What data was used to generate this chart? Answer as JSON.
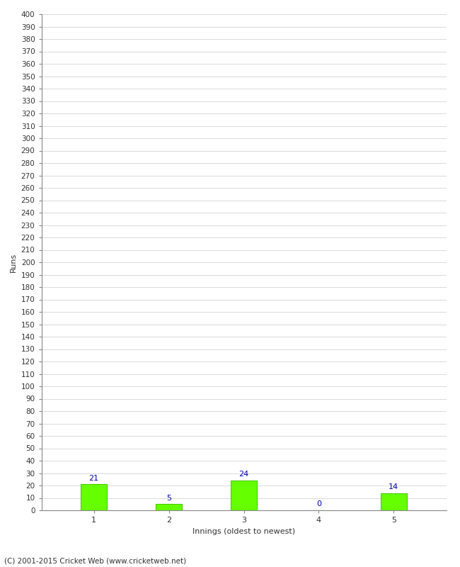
{
  "categories": [
    1,
    2,
    3,
    4,
    5
  ],
  "values": [
    21,
    5,
    24,
    0,
    14
  ],
  "bar_color": "#66ff00",
  "bar_edgecolor": "#44cc00",
  "label_color": "#0000aa",
  "xlabel": "Innings (oldest to newest)",
  "ylabel": "Runs",
  "ylim": [
    0,
    400
  ],
  "ytick_step": 10,
  "background_color": "#ffffff",
  "grid_color": "#cccccc",
  "footer": "(C) 2001-2015 Cricket Web (www.cricketweb.net)"
}
